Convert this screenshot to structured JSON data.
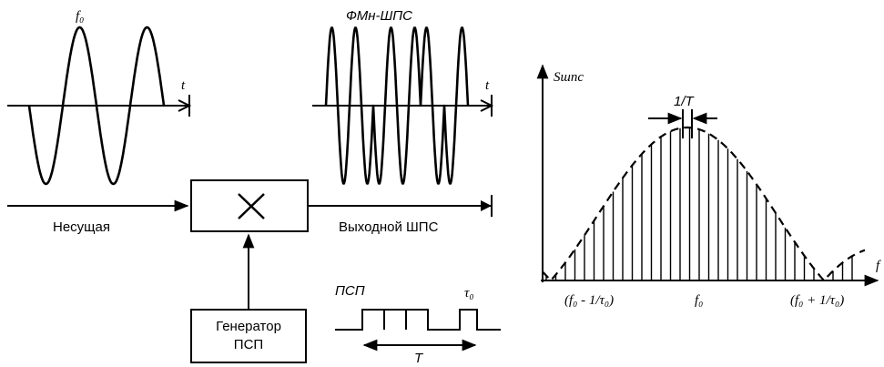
{
  "left_diagram": {
    "carrier_label": "f₀",
    "output_wave_label": "ФМн-ШПС",
    "time_axis_label": "t",
    "input_label": "Несущая",
    "output_label": "Выходной ШПС",
    "mixer_symbol": "×",
    "generator_line1": "Генератор",
    "generator_line2": "ПСП",
    "psp_label": "ПСП",
    "tau_label": "τ₀",
    "period_label": "T"
  },
  "spectrum": {
    "y_axis_label": "Sшпс",
    "x_axis_label": "f",
    "line_spacing_label": "1/T",
    "left_lobe_label": "(f₀ - 1/τ₀)",
    "center_label": "f₀",
    "right_lobe_label": "(f₀ + 1/τ₀)"
  }
}
